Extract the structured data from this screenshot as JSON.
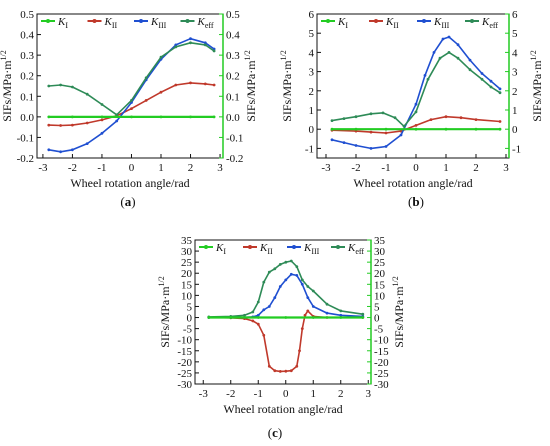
{
  "colors": {
    "KI": "#22cc22",
    "KII": "#c0392b",
    "KIII": "#1f4fd1",
    "Keff": "#2e8b57",
    "right_axis": "#22cc22"
  },
  "legend": [
    {
      "key": "KI",
      "base": "K",
      "sub": "I"
    },
    {
      "key": "KII",
      "base": "K",
      "sub": "II"
    },
    {
      "key": "KIII",
      "base": "K",
      "sub": "III"
    },
    {
      "key": "Keff",
      "base": "K",
      "sub": "eff"
    }
  ],
  "chart_data": [
    {
      "type": "line",
      "panel": "(a)",
      "xlabel": "Wheel rotation angle/rad",
      "ylabel": "SIFs/MPa·m1/2",
      "y2label": "SIFs/MPa·m1/2",
      "xlim": [
        -3.2,
        3.1
      ],
      "ylim": [
        -0.2,
        0.5
      ],
      "xticks": [
        -3,
        -2,
        -1,
        0,
        1,
        2,
        3
      ],
      "yticks": [
        -0.2,
        -0.1,
        0.0,
        0.1,
        0.2,
        0.3,
        0.4,
        0.5
      ],
      "ytick_labels": [
        "-0.2",
        "-0.1",
        "0.0",
        "0.1",
        "0.2",
        "0.3",
        "0.4",
        "0.5"
      ],
      "series": [
        {
          "name": "KI",
          "x": [
            -2.8,
            -2,
            -1,
            0,
            1,
            2,
            2.8
          ],
          "y": [
            0,
            0,
            0,
            0,
            0,
            0,
            0
          ]
        },
        {
          "name": "KII",
          "x": [
            -2.8,
            -2.4,
            -2,
            -1.5,
            -1,
            -0.5,
            0,
            0.5,
            1,
            1.5,
            2,
            2.5,
            2.8
          ],
          "y": [
            -0.04,
            -0.042,
            -0.04,
            -0.03,
            -0.015,
            0.005,
            0.04,
            0.08,
            0.12,
            0.155,
            0.165,
            0.16,
            0.155
          ]
        },
        {
          "name": "KIII",
          "x": [
            -2.8,
            -2.4,
            -2,
            -1.5,
            -1,
            -0.5,
            0,
            0.5,
            1,
            1.5,
            2,
            2.5,
            2.8
          ],
          "y": [
            -0.16,
            -0.17,
            -0.16,
            -0.13,
            -0.08,
            -0.02,
            0.07,
            0.18,
            0.28,
            0.35,
            0.38,
            0.36,
            0.33
          ]
        },
        {
          "name": "Keff",
          "x": [
            -2.8,
            -2.4,
            -2,
            -1.5,
            -1,
            -0.5,
            0,
            0.5,
            1,
            1.5,
            2,
            2.5,
            2.8
          ],
          "y": [
            0.15,
            0.155,
            0.145,
            0.11,
            0.06,
            0.01,
            0.08,
            0.19,
            0.29,
            0.34,
            0.36,
            0.35,
            0.32
          ]
        }
      ]
    },
    {
      "type": "line",
      "panel": "(b)",
      "xlabel": "Wheel rotation angle/rad",
      "ylabel": "SIFs/MPa·m1/2",
      "y2label": "SIFs/MPa·m1/2",
      "xlim": [
        -3.3,
        3.1
      ],
      "ylim": [
        -1.5,
        6
      ],
      "xticks": [
        -3,
        -2,
        -1,
        0,
        1,
        2,
        3
      ],
      "yticks": [
        -1,
        0,
        1,
        2,
        3,
        4,
        5,
        6
      ],
      "ytick_labels": [
        "-1",
        "0",
        "1",
        "2",
        "3",
        "4",
        "5",
        "6"
      ],
      "series": [
        {
          "name": "KI",
          "x": [
            -2.8,
            -2,
            -1,
            0,
            1,
            2,
            2.8
          ],
          "y": [
            0,
            0,
            0,
            0,
            0,
            0,
            0
          ]
        },
        {
          "name": "KII",
          "x": [
            -2.8,
            -2,
            -1.5,
            -1,
            -0.5,
            0,
            0.5,
            1,
            1.5,
            2,
            2.8
          ],
          "y": [
            -0.05,
            -0.1,
            -0.15,
            -0.2,
            -0.1,
            0.2,
            0.5,
            0.65,
            0.6,
            0.5,
            0.4
          ]
        },
        {
          "name": "KIII",
          "x": [
            -2.8,
            -2.4,
            -2,
            -1.5,
            -1,
            -0.5,
            0,
            0.3,
            0.6,
            0.9,
            1.1,
            1.4,
            1.8,
            2.2,
            2.5,
            2.8
          ],
          "y": [
            -0.55,
            -0.7,
            -0.85,
            -1.0,
            -0.9,
            -0.3,
            1.3,
            2.8,
            4.0,
            4.7,
            4.8,
            4.4,
            3.6,
            2.9,
            2.5,
            2.1
          ]
        },
        {
          "name": "Keff",
          "x": [
            -2.8,
            -2.4,
            -2,
            -1.5,
            -1.1,
            -0.7,
            -0.4,
            0,
            0.4,
            0.8,
            1.1,
            1.4,
            1.8,
            2.2,
            2.5,
            2.8
          ],
          "y": [
            0.45,
            0.55,
            0.65,
            0.8,
            0.85,
            0.6,
            0.15,
            0.9,
            2.6,
            3.7,
            4.0,
            3.7,
            3.1,
            2.6,
            2.2,
            1.9
          ]
        }
      ]
    },
    {
      "type": "line",
      "panel": "(c)",
      "xlabel": "Wheel rotation angle/rad",
      "ylabel": "SIFs/MPa·m1/2",
      "y2label": "SIFs/MPa·m1/2",
      "xlim": [
        -3.3,
        3.1
      ],
      "ylim": [
        -30,
        35
      ],
      "xticks": [
        -3,
        -2,
        -1,
        0,
        1,
        2,
        3
      ],
      "yticks": [
        -30,
        -25,
        -20,
        -15,
        -10,
        -5,
        0,
        5,
        10,
        15,
        20,
        25,
        30,
        35
      ],
      "ytick_labels": [
        "-30",
        "-25",
        "-20",
        "-15",
        "-10",
        "-5",
        "0",
        "5",
        "10",
        "15",
        "20",
        "25",
        "30",
        "35"
      ],
      "series": [
        {
          "name": "KI",
          "x": [
            -2.8,
            -2,
            -1,
            0,
            1,
            2,
            2.8
          ],
          "y": [
            0,
            0,
            0,
            0,
            0,
            0,
            0
          ]
        },
        {
          "name": "KII",
          "x": [
            -2.8,
            -2,
            -1.5,
            -1.2,
            -1,
            -0.8,
            -0.6,
            -0.4,
            -0.2,
            0,
            0.2,
            0.4,
            0.5,
            0.6,
            0.7,
            0.8,
            1.0,
            1.5,
            2.8
          ],
          "y": [
            0,
            -0.1,
            -0.5,
            -1.5,
            -3,
            -8,
            -22,
            -24,
            -24.3,
            -24.2,
            -24,
            -22,
            -15,
            -5,
            1,
            3,
            0.5,
            0,
            0
          ]
        },
        {
          "name": "KIII",
          "x": [
            -2.8,
            -2,
            -1.5,
            -1.2,
            -1,
            -0.8,
            -0.6,
            -0.4,
            -0.2,
            0,
            0.2,
            0.4,
            0.6,
            0.8,
            1.0,
            1.5,
            2.0,
            2.8
          ],
          "y": [
            0,
            0,
            0.1,
            0.3,
            1,
            3.5,
            5,
            9,
            14,
            17,
            19.5,
            19,
            15,
            9,
            5,
            2,
            1,
            0.5
          ]
        },
        {
          "name": "Keff",
          "x": [
            -2.8,
            -2,
            -1.5,
            -1.2,
            -1,
            -0.8,
            -0.6,
            -0.4,
            -0.2,
            0,
            0.2,
            0.4,
            0.6,
            0.8,
            1.0,
            1.5,
            2.0,
            2.8
          ],
          "y": [
            0.3,
            0.5,
            1,
            2.5,
            7,
            16,
            20.5,
            22,
            24,
            25,
            25.5,
            23,
            17,
            14,
            12,
            6,
            3,
            1.5
          ]
        }
      ]
    }
  ]
}
